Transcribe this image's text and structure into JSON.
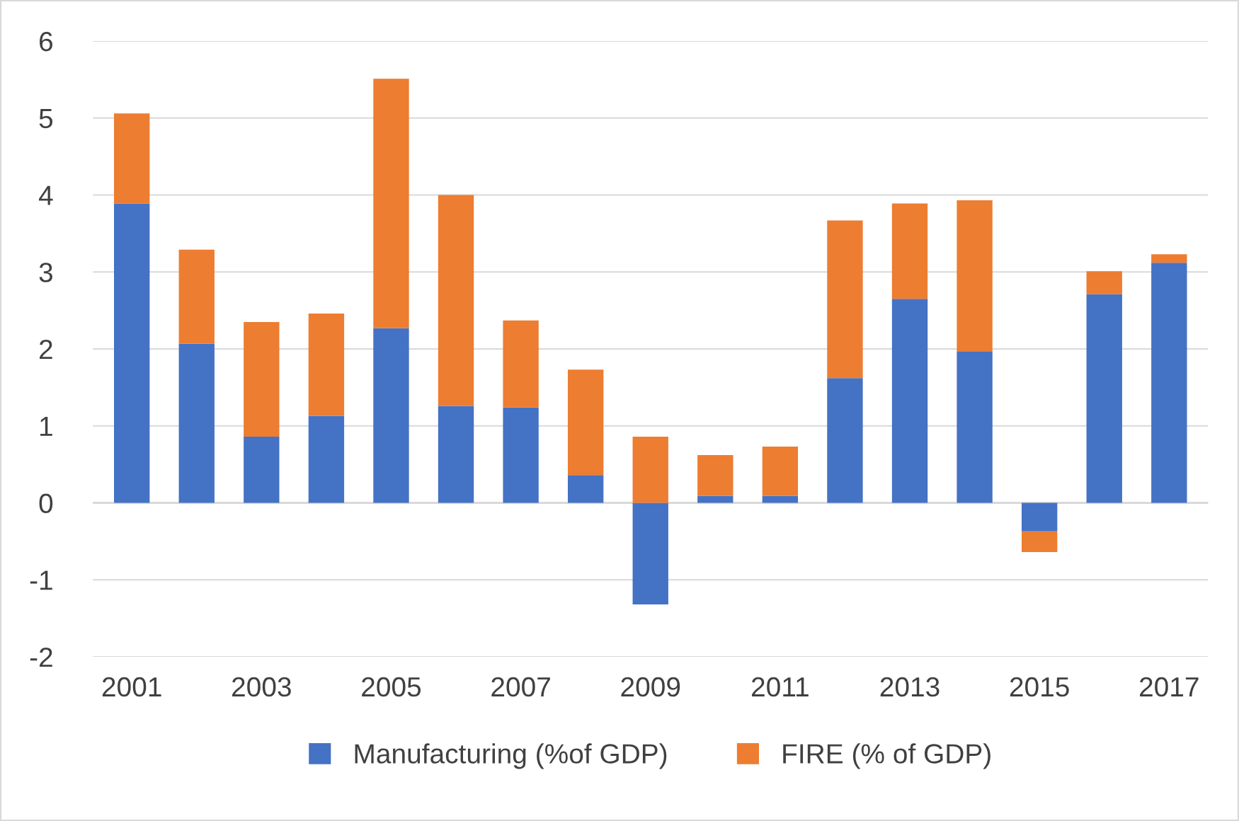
{
  "chart_data": {
    "type": "bar",
    "stacked": true,
    "categories": [
      "2001",
      null,
      "2003",
      null,
      "2005",
      null,
      "2007",
      null,
      "2009",
      null,
      "2011",
      null,
      "2013",
      null,
      "2015",
      null,
      "2017"
    ],
    "series": [
      {
        "name": "Manufacturing (%of GDP)",
        "color": "#4472c4",
        "values": [
          3.89,
          2.07,
          0.86,
          1.13,
          2.27,
          1.26,
          1.24,
          0.36,
          -1.32,
          0.09,
          0.09,
          1.62,
          2.65,
          1.97,
          -0.37,
          2.71,
          3.12
        ]
      },
      {
        "name": "FIRE (% of GDP)",
        "color": "#ed7d31",
        "values": [
          1.17,
          1.22,
          1.49,
          1.33,
          3.24,
          2.74,
          1.13,
          1.37,
          0.86,
          0.53,
          0.64,
          2.05,
          1.24,
          1.96,
          -0.27,
          0.3,
          0.11
        ]
      }
    ],
    "ylim": [
      -2,
      6
    ],
    "yticks": [
      -2,
      -1,
      0,
      1,
      2,
      3,
      4,
      5,
      6
    ],
    "grid": "y",
    "legend": "bottom"
  }
}
